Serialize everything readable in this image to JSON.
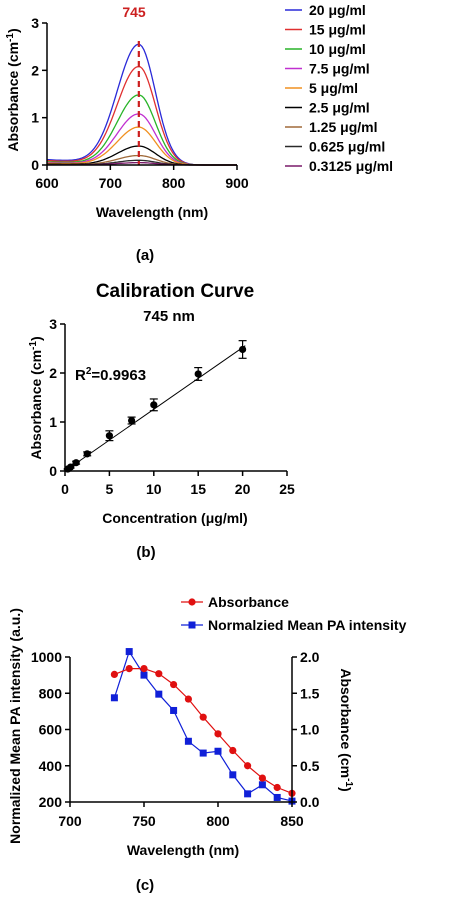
{
  "colors": {
    "spectra": [
      "#2a2ad8",
      "#e03030",
      "#28b428",
      "#c030d0",
      "#f09020",
      "#000000",
      "#a06a3a",
      "#2a2a2a",
      "#7a1a6a"
    ],
    "peak_marker": "#cc1f1f",
    "absorbance_series": "#e01010",
    "pa_series": "#1020d8",
    "axis": "#000000"
  },
  "panels": {
    "a_label": "(a)",
    "b_label": "(b)",
    "c_label": "(c)"
  },
  "chart_data": [
    {
      "type": "line",
      "panel": "a",
      "title": "",
      "xlabel": "Wavelength (nm)",
      "ylabel_main": "Absorbance (cm",
      "ylabel_sup": "-1",
      "ylabel_end": ")",
      "xlim": [
        600,
        900
      ],
      "ylim": [
        0,
        3
      ],
      "xticks": [
        "600",
        "700",
        "800",
        "900"
      ],
      "yticks": [
        "0",
        "1",
        "2",
        "3"
      ],
      "peak_label": "745",
      "peak_x": 745,
      "series": [
        {
          "name": "20 μg/ml",
          "peak": 2.55
        },
        {
          "name": "15 μg/ml",
          "peak": 2.08
        },
        {
          "name": "10 μg/ml",
          "peak": 1.48
        },
        {
          "name": "7.5 μg/ml",
          "peak": 1.08
        },
        {
          "name": "5 μg/ml",
          "peak": 0.8
        },
        {
          "name": "2.5 μg/ml",
          "peak": 0.4
        },
        {
          "name": "1.25 μg/ml",
          "peak": 0.2
        },
        {
          "name": "0.625 μg/ml",
          "peak": 0.1
        },
        {
          "name": "0.3125 μg/ml",
          "peak": 0.05
        }
      ]
    },
    {
      "type": "scatter",
      "panel": "b",
      "title": "Calibration Curve",
      "subtitle": "745 nm",
      "xlabel": "Concentration (μg/ml)",
      "ylabel_main": "Absorbance (cm",
      "ylabel_sup": "-1",
      "ylabel_end": ")",
      "xlim": [
        0,
        25
      ],
      "ylim": [
        0,
        3
      ],
      "xticks": [
        "0",
        "5",
        "10",
        "15",
        "20",
        "25"
      ],
      "yticks": [
        "0",
        "1",
        "2",
        "3"
      ],
      "annotation_main": "R",
      "annotation_sup": "2",
      "annotation_end": "=0.9963",
      "fit": {
        "slope": 0.126,
        "intercept": 0
      },
      "points": [
        {
          "x": 0.3125,
          "y": 0.04,
          "err": 0.01
        },
        {
          "x": 0.625,
          "y": 0.08,
          "err": 0.02
        },
        {
          "x": 1.25,
          "y": 0.17,
          "err": 0.03
        },
        {
          "x": 2.5,
          "y": 0.35,
          "err": 0.04
        },
        {
          "x": 5,
          "y": 0.72,
          "err": 0.1
        },
        {
          "x": 7.5,
          "y": 1.03,
          "err": 0.07
        },
        {
          "x": 10,
          "y": 1.35,
          "err": 0.12
        },
        {
          "x": 15,
          "y": 1.98,
          "err": 0.13
        },
        {
          "x": 20,
          "y": 2.48,
          "err": 0.18
        }
      ]
    },
    {
      "type": "line",
      "panel": "c",
      "title": "",
      "xlabel": "Wavelength (nm)",
      "ylabel_left": "Normalized Mean PA intensity (a.u.)",
      "ylabel_right_main": "Absorbance (cm",
      "ylabel_right_sup": "-1",
      "ylabel_right_end": ")",
      "xlim": [
        700,
        850
      ],
      "ylim_left": [
        200,
        1000
      ],
      "ylim_right": [
        0,
        2
      ],
      "xticks": [
        "700",
        "750",
        "800",
        "850"
      ],
      "yticks_left": [
        "200",
        "400",
        "600",
        "800",
        "1000"
      ],
      "yticks_right": [
        "0.0",
        "0.5",
        "1.0",
        "1.5",
        "2.0"
      ],
      "x": [
        730,
        740,
        750,
        760,
        770,
        780,
        790,
        800,
        810,
        820,
        830,
        840,
        850
      ],
      "series": [
        {
          "name": "Absorbance",
          "axis": "right",
          "marker": "circle",
          "values": [
            1.76,
            1.84,
            1.84,
            1.77,
            1.62,
            1.42,
            1.17,
            0.94,
            0.71,
            0.5,
            0.33,
            0.2,
            0.12
          ]
        },
        {
          "name": "Normalzied Mean PA intensity",
          "axis": "left",
          "marker": "square",
          "values": [
            775,
            1030,
            900,
            795,
            705,
            535,
            470,
            480,
            350,
            245,
            295,
            225,
            205
          ]
        }
      ]
    }
  ]
}
